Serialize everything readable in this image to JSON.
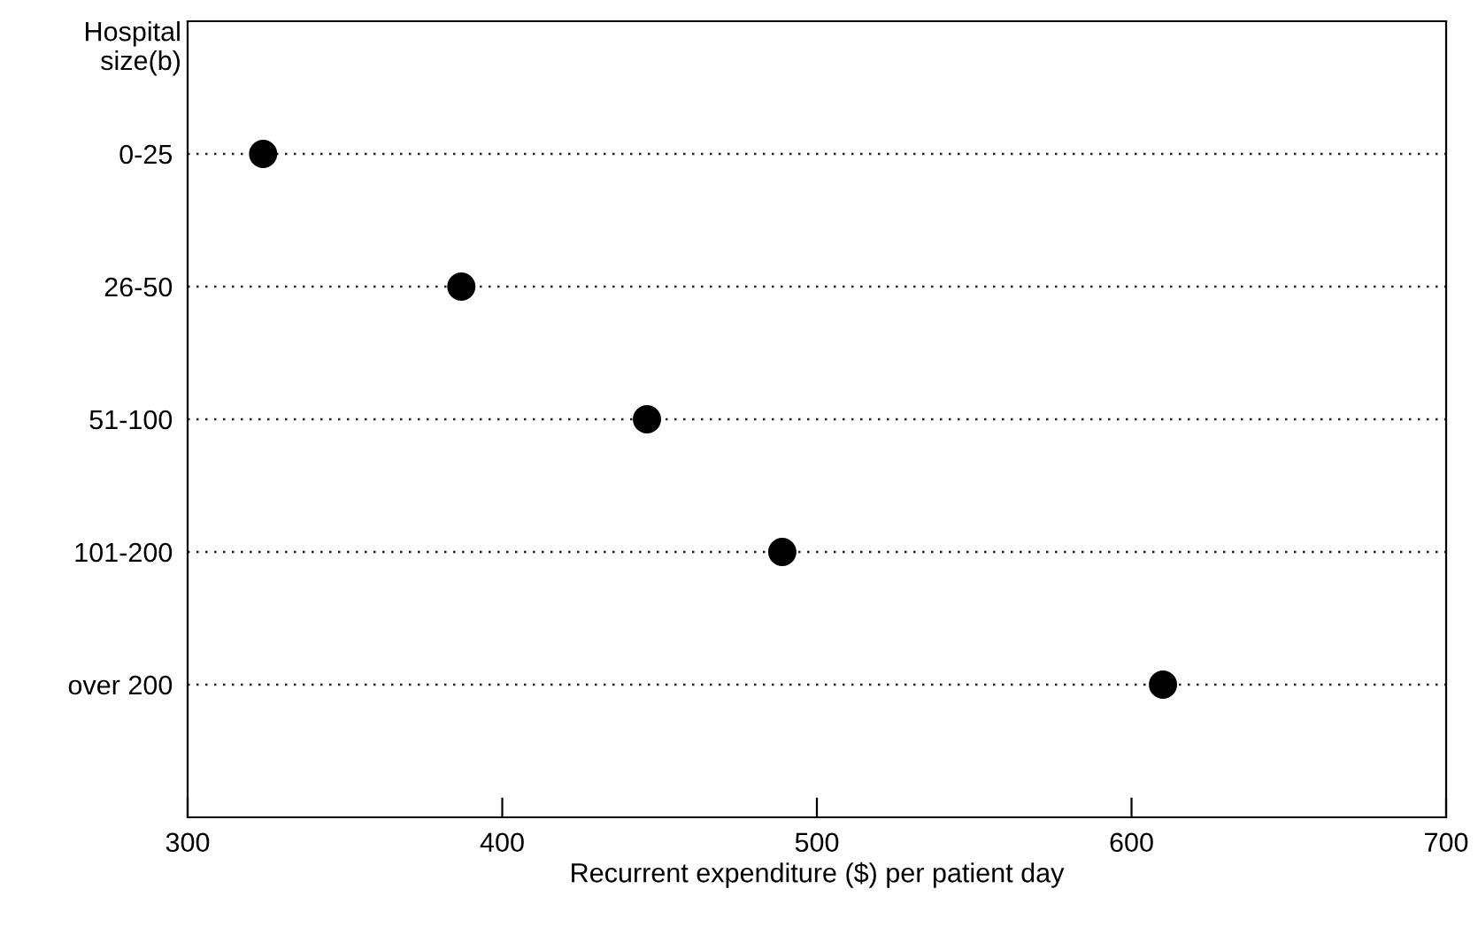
{
  "chart_data": {
    "type": "scatter",
    "orientation": "horizontal",
    "ylabel": "Hospital size(b)",
    "xlabel": "Recurrent expenditure ($) per patient day",
    "categories": [
      "0-25",
      "26-50",
      "51-100",
      "101-200",
      "over 200"
    ],
    "series": [
      {
        "color": "#000000",
        "values": [
          324,
          387,
          446,
          489,
          610
        ]
      }
    ],
    "xlim": [
      300,
      700
    ],
    "xticks": [
      300,
      400,
      500,
      600,
      700
    ],
    "grid": "y",
    "marker": "circle"
  }
}
